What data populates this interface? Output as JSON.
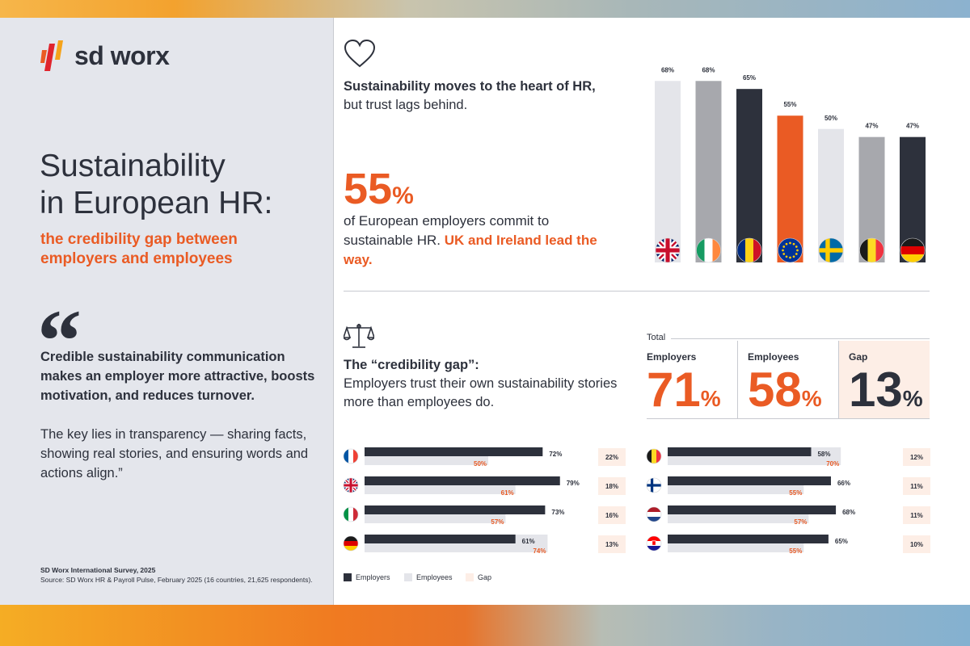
{
  "brand": {
    "name": "sd worx"
  },
  "colors": {
    "accent": "#ea5b24",
    "dark": "#2d313c",
    "mid": "#a7a8ad",
    "light": "#e4e5ea",
    "gap_bg": "#fdeee6"
  },
  "hero": {
    "title_line1": "Sustainability",
    "title_line2": "in European HR:",
    "subtitle": "the credibility gap between employers and employees"
  },
  "quote": {
    "mark": "“",
    "bold": "Credible sustainability communication makes an employer more attractive, boosts motivation, and reduces turnover.",
    "text": "The key lies in transparency — sharing facts, showing real stories, and ensuring words and actions align.”"
  },
  "footer": {
    "survey": "SD Worx International Survey, 2025",
    "source": "Source: SD Worx HR & Payroll Pulse, February 2025 (16 countries, 21,625 respondents)."
  },
  "section1": {
    "icon": "heart-icon",
    "headline_bold": "Sustainability moves to the heart of HR,",
    "headline_rest": "but trust lags behind.",
    "big_number": "55",
    "big_suffix": "%",
    "desc_plain": "of European employers commit to sustainable HR.",
    "desc_accent": "UK and Ireland lead the way."
  },
  "chart_data": [
    {
      "type": "bar",
      "title": "Employers committing to sustainable HR",
      "categories": [
        "United Kingdom",
        "Ireland",
        "Romania",
        "Europe",
        "Sweden",
        "Belgium",
        "Germany"
      ],
      "values": [
        68,
        68,
        65,
        55,
        50,
        47,
        47
      ],
      "labels": [
        "68%",
        "68%",
        "65%",
        "55%",
        "50%",
        "47%",
        "47%"
      ],
      "flags": [
        "uk",
        "ie",
        "ro",
        "eu",
        "se",
        "be",
        "de"
      ],
      "bar_colors": [
        "#e4e5ea",
        "#a7a8ad",
        "#2d313c",
        "#ea5b24",
        "#e4e5ea",
        "#a7a8ad",
        "#2d313c"
      ],
      "ylim": [
        0,
        70
      ]
    },
    {
      "type": "bar",
      "title": "Credibility gap by country",
      "series_names": [
        "Employers",
        "Employees",
        "Gap"
      ],
      "rows": [
        {
          "flag": "fr",
          "employers": 72,
          "employees": 50,
          "gap": 22,
          "emp_label": "72%",
          "ee_label": "50%",
          "gap_label": "22%"
        },
        {
          "flag": "uk",
          "employers": 79,
          "employees": 61,
          "gap": 18,
          "emp_label": "79%",
          "ee_label": "61%",
          "gap_label": "18%"
        },
        {
          "flag": "it",
          "employers": 73,
          "employees": 57,
          "gap": 16,
          "emp_label": "73%",
          "ee_label": "57%",
          "gap_label": "16%"
        },
        {
          "flag": "de",
          "employers": 61,
          "employees": 74,
          "gap": 13,
          "emp_label": "61%",
          "ee_label": "74%",
          "gap_label": "13%"
        },
        {
          "flag": "be",
          "employers": 58,
          "employees": 70,
          "gap": 12,
          "emp_label": "58%",
          "ee_label": "70%",
          "gap_label": "12%"
        },
        {
          "flag": "fi",
          "employers": 66,
          "employees": 55,
          "gap": 11,
          "emp_label": "66%",
          "ee_label": "55%",
          "gap_label": "11%"
        },
        {
          "flag": "nl",
          "employers": 68,
          "employees": 57,
          "gap": 11,
          "emp_label": "68%",
          "ee_label": "57%",
          "gap_label": "11%"
        },
        {
          "flag": "hr",
          "employers": 65,
          "employees": 55,
          "gap": 10,
          "emp_label": "65%",
          "ee_label": "55%",
          "gap_label": "10%"
        }
      ],
      "xlim": [
        0,
        100
      ]
    }
  ],
  "section2": {
    "icon": "scale-icon",
    "headline_bold": "The “credibility gap”:",
    "headline_rest": "Employers trust their own sustainability stories more than employees do.",
    "total_label": "Total",
    "kpis": [
      {
        "label": "Employers",
        "value": "71",
        "suffix": "%"
      },
      {
        "label": "Employees",
        "value": "58",
        "suffix": "%"
      },
      {
        "label": "Gap",
        "value": "13",
        "suffix": "%"
      }
    ]
  },
  "legend": {
    "employers": "Employers",
    "employees": "Employees",
    "gap": "Gap"
  }
}
